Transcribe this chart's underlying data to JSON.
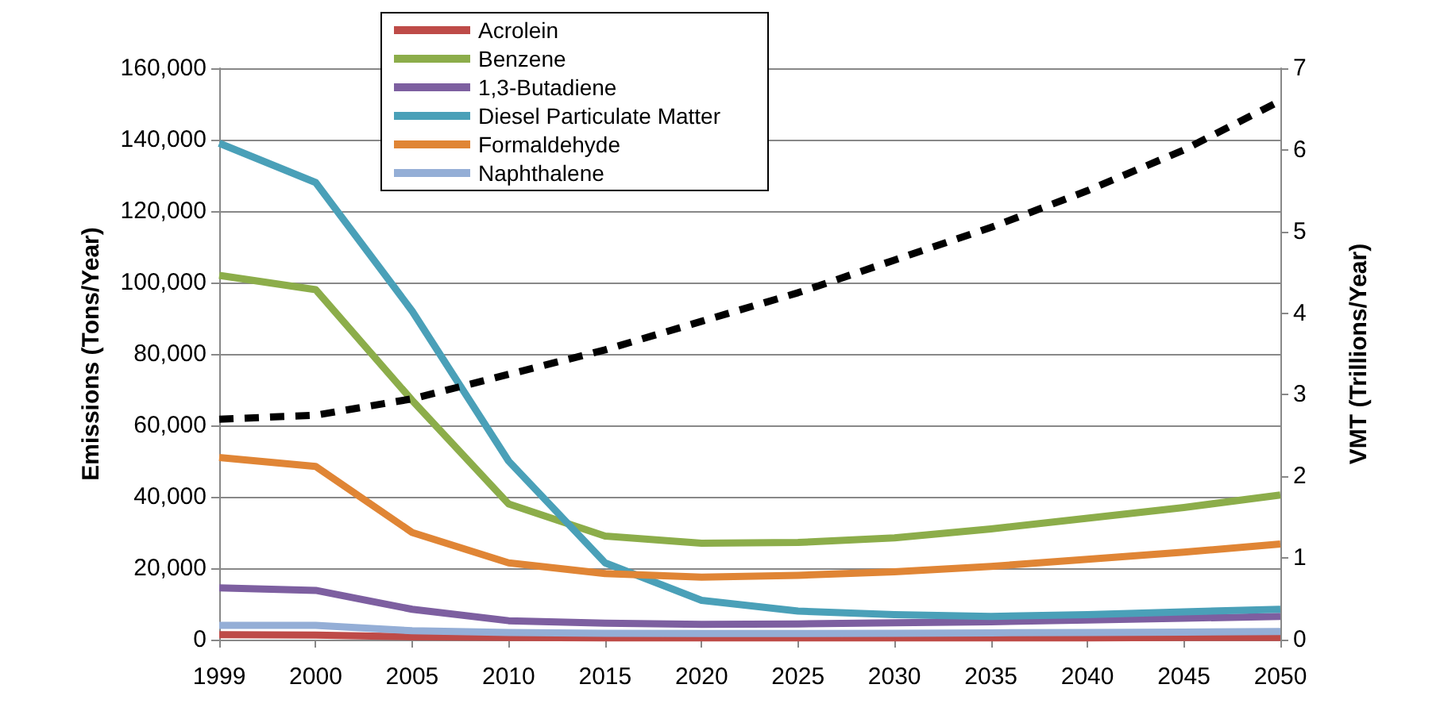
{
  "chart_data": {
    "type": "line",
    "ylabel": "Emissions (Tons/Year)",
    "y2label": "VMT (Trillions/Year)",
    "categories": [
      "1999",
      "2000",
      "2005",
      "2010",
      "2015",
      "2020",
      "2025",
      "2030",
      "2035",
      "2040",
      "2045",
      "2050"
    ],
    "series": [
      {
        "name": "Acrolein",
        "color": "#be4b48",
        "values": [
          1400,
          1300,
          800,
          600,
          500,
          500,
          500,
          500,
          500,
          500,
          600,
          600
        ]
      },
      {
        "name": "Benzene",
        "color": "#8cad4a",
        "values": [
          102000,
          98000,
          67000,
          38000,
          29000,
          27000,
          27200,
          28500,
          31000,
          34000,
          37000,
          40500
        ]
      },
      {
        "name": "1,3-Butadiene",
        "color": "#7d5fa0",
        "values": [
          14500,
          13800,
          8500,
          5300,
          4600,
          4300,
          4400,
          4700,
          5000,
          5500,
          6000,
          6500
        ]
      },
      {
        "name": "Diesel Particulate Matter",
        "color": "#4aa0b8",
        "values": [
          139000,
          128000,
          92000,
          50000,
          21500,
          11000,
          8000,
          7000,
          6500,
          7000,
          7800,
          8500
        ]
      },
      {
        "name": "Formaldehyde",
        "color": "#e08535",
        "values": [
          51000,
          48500,
          30000,
          21500,
          18500,
          17500,
          18000,
          19000,
          20500,
          22500,
          24500,
          26800
        ]
      },
      {
        "name": "Naphthalene",
        "color": "#94aed6",
        "values": [
          4000,
          4000,
          2500,
          2000,
          1800,
          1700,
          1700,
          1800,
          1900,
          2000,
          2100,
          2300
        ]
      },
      {
        "color": "#000000",
        "axis": "y2",
        "line_style": "dashed",
        "values": [
          2.7,
          2.75,
          2.95,
          3.25,
          3.55,
          3.9,
          4.25,
          4.65,
          5.05,
          5.5,
          6.0,
          6.6
        ]
      }
    ],
    "ylim": [
      0,
      160000
    ],
    "yticks": [
      0,
      {
        "value": 20000,
        "label": "20,000"
      },
      {
        "value": 40000,
        "label": "40,000"
      },
      {
        "value": 60000,
        "label": "60,000"
      },
      {
        "value": 80000,
        "label": "80,000"
      },
      {
        "value": 100000,
        "label": "100,000"
      },
      {
        "value": 120000,
        "label": "120,000"
      },
      {
        "value": 140000,
        "label": "140,000"
      },
      {
        "value": 160000,
        "label": "160,000"
      }
    ],
    "y2lim": [
      0,
      7
    ],
    "y2ticks": [
      0,
      1,
      2,
      3,
      4,
      5,
      6,
      7
    ],
    "grid": "y",
    "legend": "top",
    "marker": "none",
    "line_style": "solid"
  }
}
